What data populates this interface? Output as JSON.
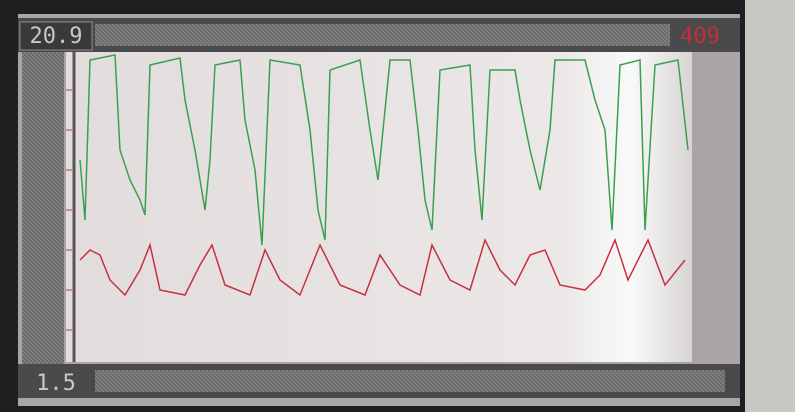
{
  "screen": {
    "top_left": "20.9",
    "top_right": "409",
    "bottom_left": "1.5"
  }
}
